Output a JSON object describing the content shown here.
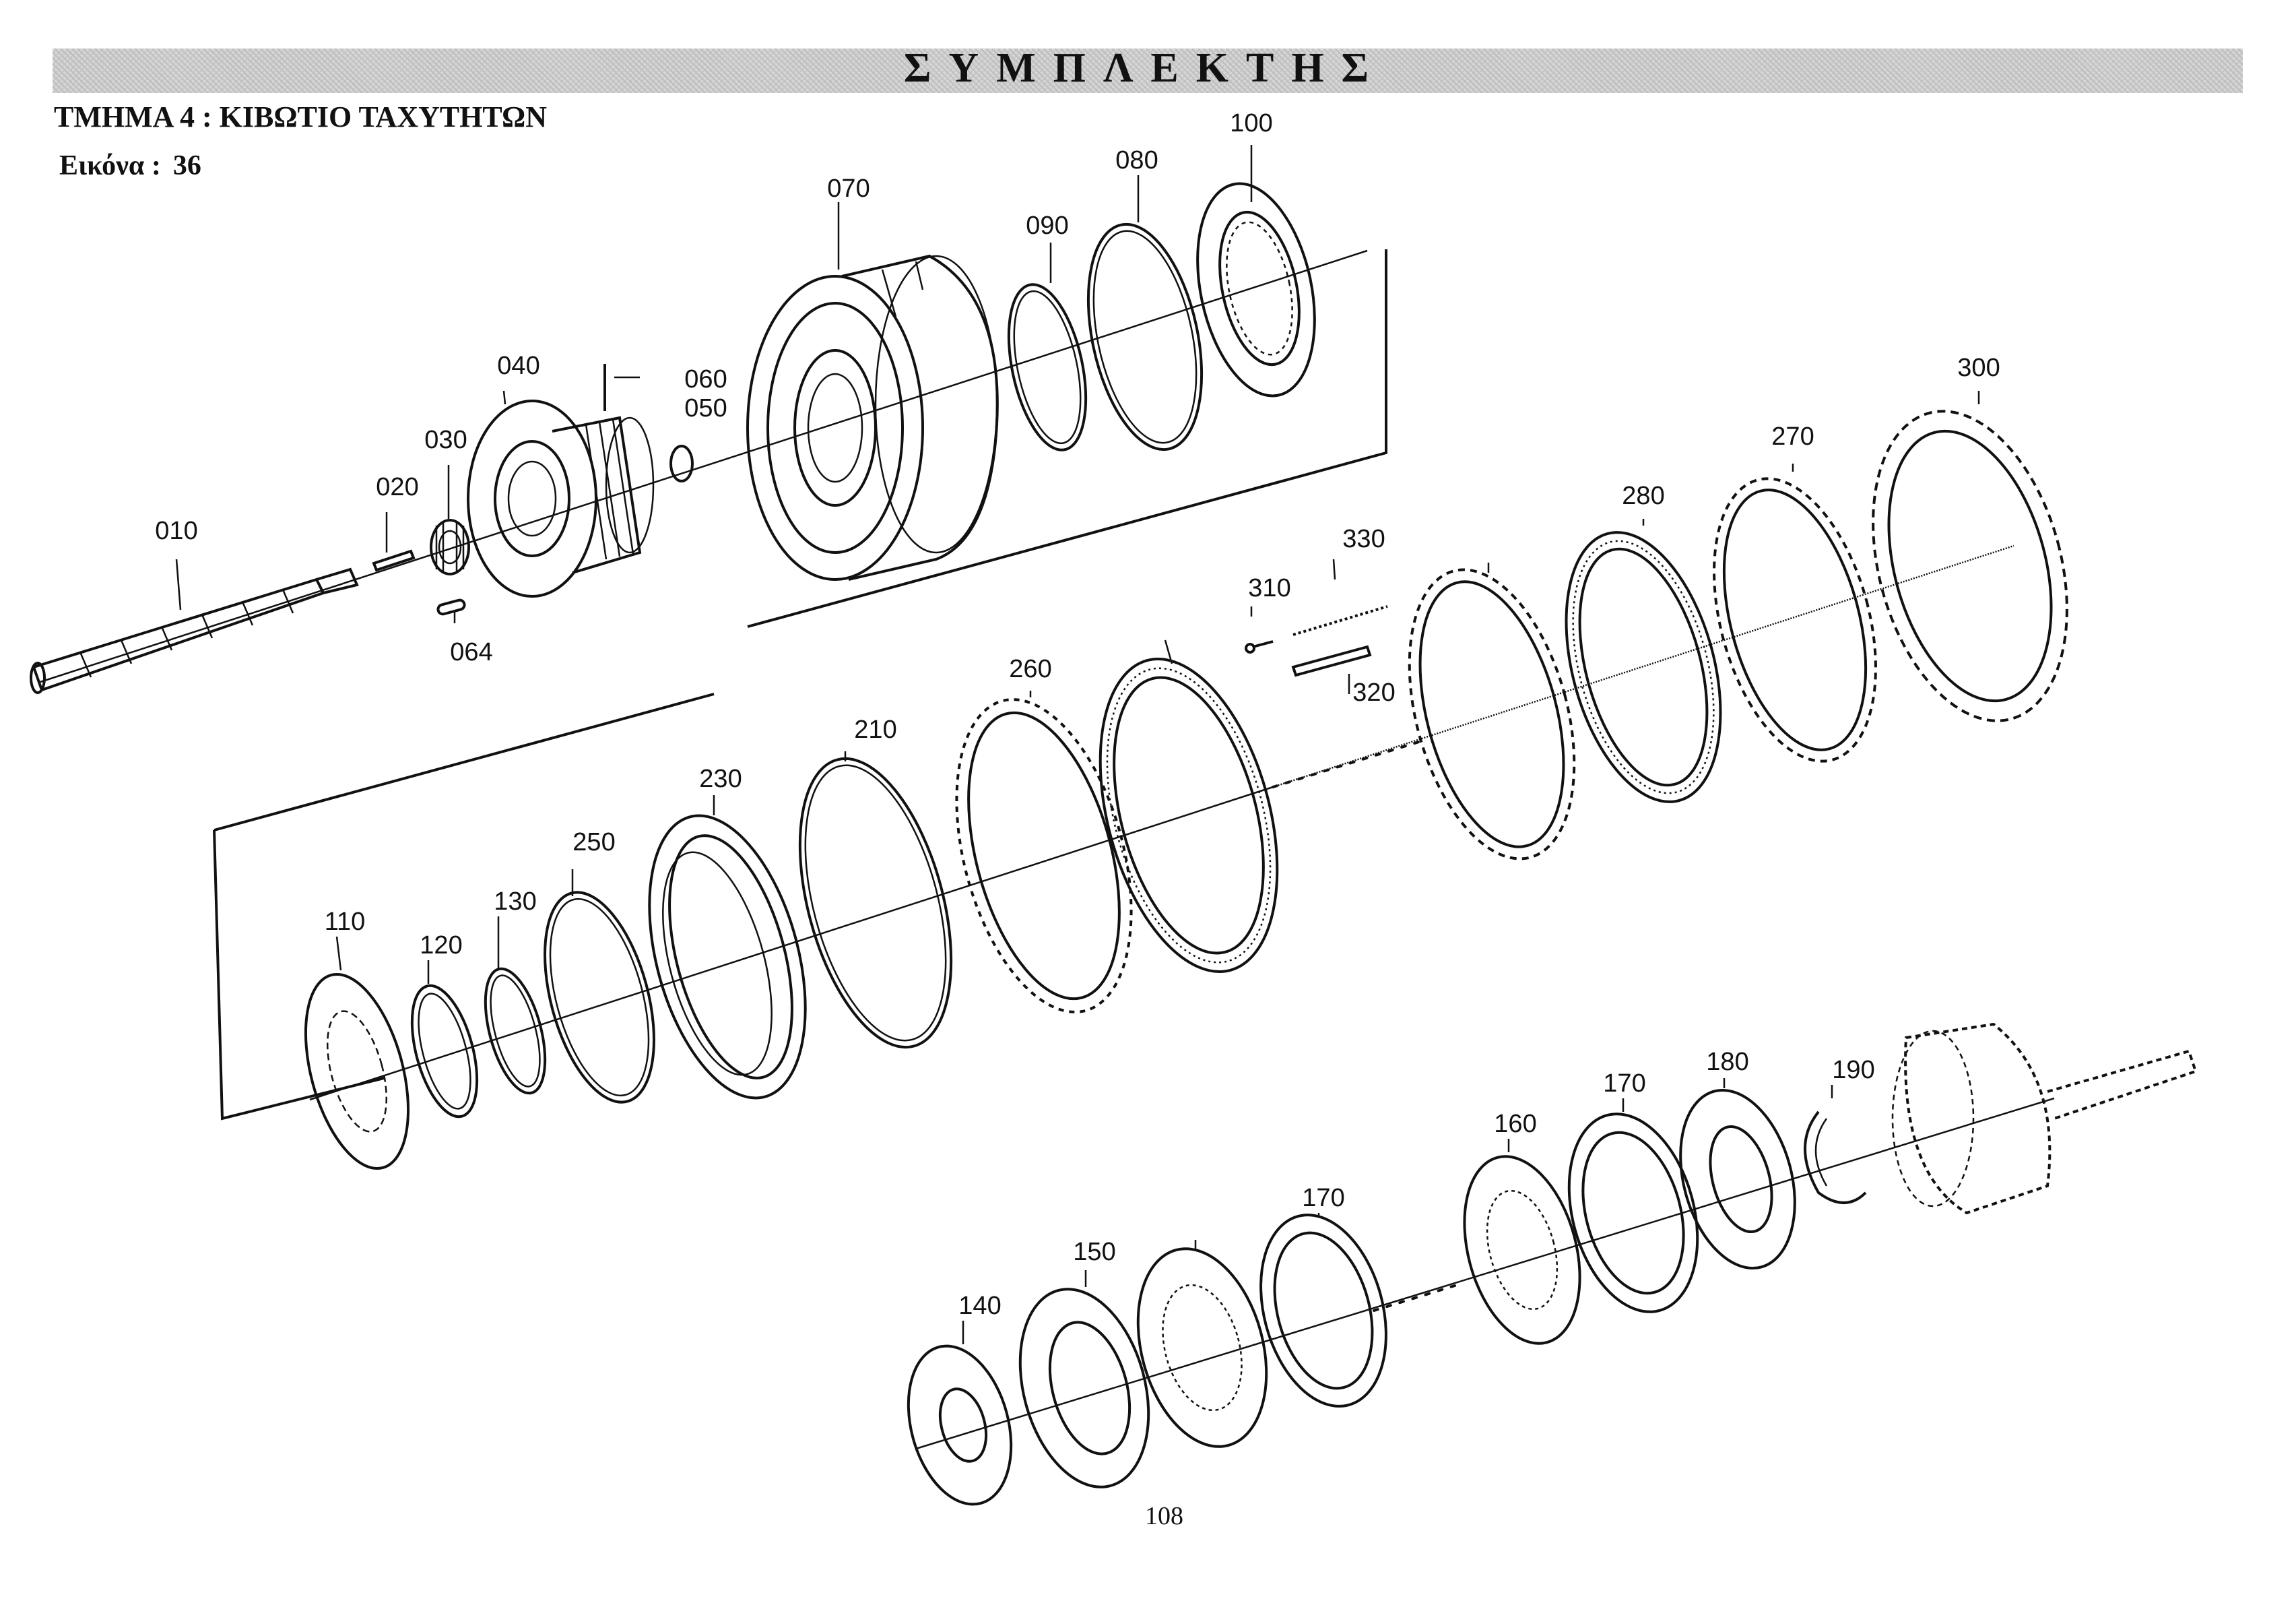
{
  "header": {
    "title": "ΣΥΜΠΛΕΚΤΗΣ"
  },
  "section": {
    "title": "ΤΜΗΜΑ 4 : ΚΙΒΩΤΙΟ ΤΑΧΥΤΗΤΩΝ"
  },
  "figure": {
    "label": "Εικόνα :",
    "number": "36"
  },
  "page": {
    "number": "108"
  },
  "colors": {
    "ink": "#111111",
    "band": "#d6d6d6",
    "paper": "#ffffff"
  },
  "parts": [
    {
      "id": "010"
    },
    {
      "id": "020"
    },
    {
      "id": "030"
    },
    {
      "id": "040"
    },
    {
      "id": "050"
    },
    {
      "id": "060"
    },
    {
      "id": "064"
    },
    {
      "id": "070"
    },
    {
      "id": "080"
    },
    {
      "id": "090"
    },
    {
      "id": "100"
    },
    {
      "id": "110"
    },
    {
      "id": "120"
    },
    {
      "id": "130"
    },
    {
      "id": "140"
    },
    {
      "id": "150"
    },
    {
      "id": "160"
    },
    {
      "id": "160b",
      "text": "160"
    },
    {
      "id": "170"
    },
    {
      "id": "170b",
      "text": "170"
    },
    {
      "id": "180"
    },
    {
      "id": "190"
    },
    {
      "id": "210"
    },
    {
      "id": "230"
    },
    {
      "id": "250"
    },
    {
      "id": "260"
    },
    {
      "id": "270"
    },
    {
      "id": "270b",
      "text": "270"
    },
    {
      "id": "280"
    },
    {
      "id": "280b",
      "text": "280"
    },
    {
      "id": "300"
    },
    {
      "id": "310"
    },
    {
      "id": "320"
    },
    {
      "id": "330"
    }
  ]
}
